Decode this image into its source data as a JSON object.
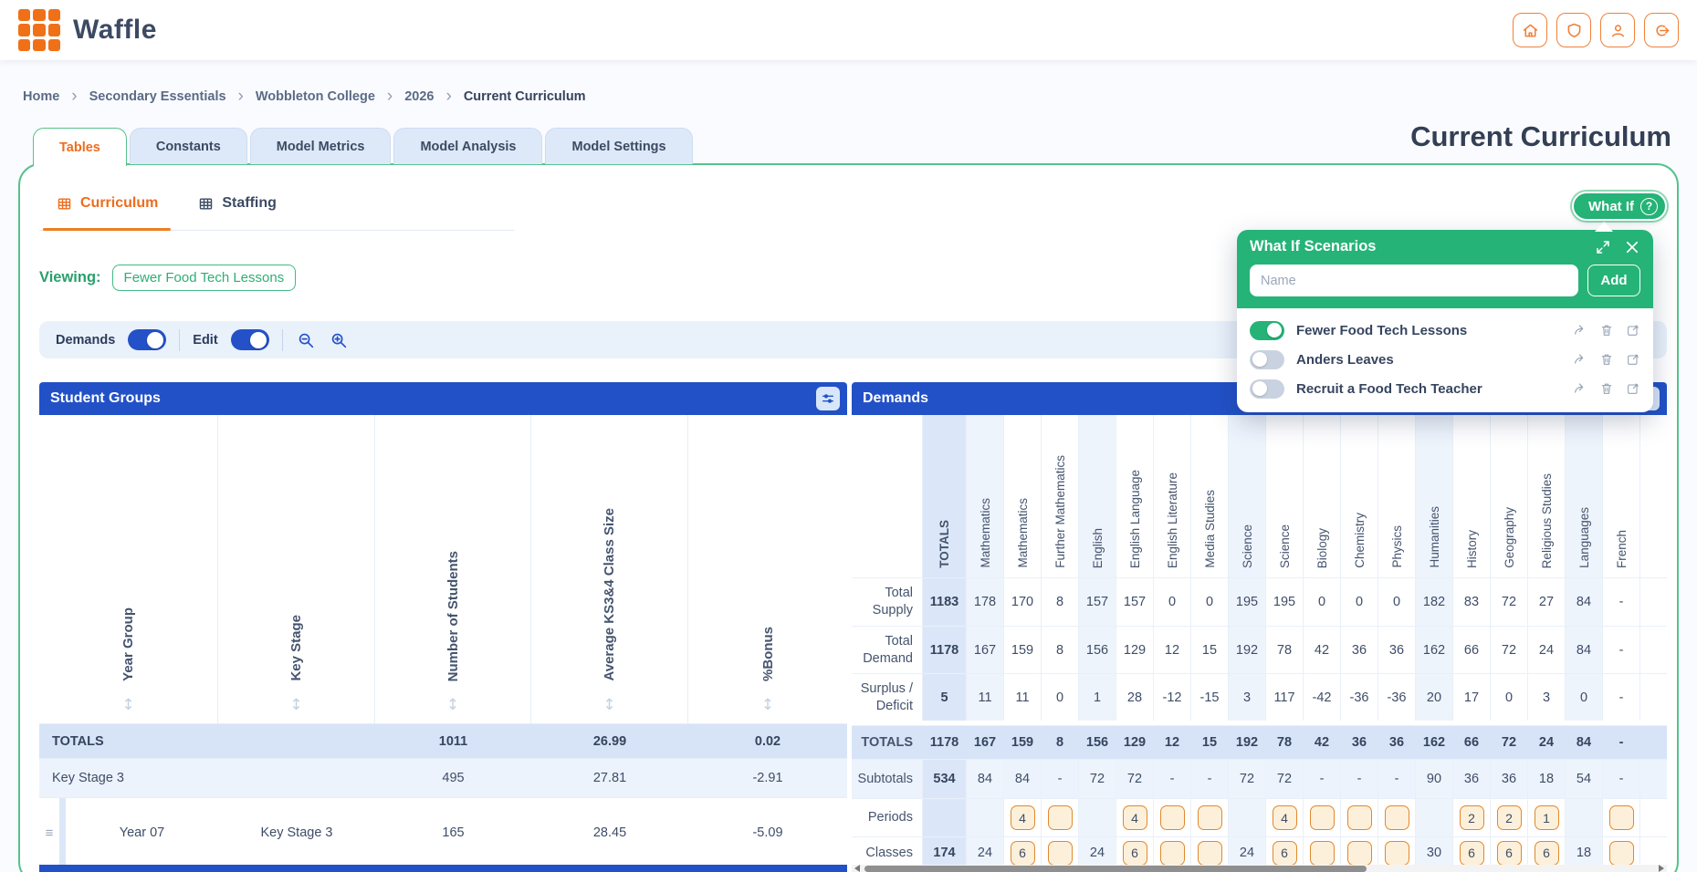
{
  "app": {
    "name": "Waffle"
  },
  "nav_icons": [
    {
      "name": "home-icon"
    },
    {
      "name": "shield-icon"
    },
    {
      "name": "user-icon"
    },
    {
      "name": "logout-icon"
    }
  ],
  "breadcrumb": {
    "items": [
      "Home",
      "Secondary Essentials",
      "Wobbleton College",
      "2026",
      "Current Curriculum"
    ]
  },
  "tabs": [
    {
      "label": "Tables",
      "active": true
    },
    {
      "label": "Constants",
      "active": false
    },
    {
      "label": "Model Metrics",
      "active": false
    },
    {
      "label": "Model Analysis",
      "active": false
    },
    {
      "label": "Model Settings",
      "active": false
    }
  ],
  "page_title": "Current Curriculum",
  "subtabs": [
    {
      "label": "Curriculum",
      "active": true
    },
    {
      "label": "Staffing",
      "active": false
    }
  ],
  "whatif": {
    "button_label": "What If",
    "panel": {
      "title": "What If Scenarios",
      "name_placeholder": "Name",
      "add_label": "Add",
      "scenarios": [
        {
          "name": "Fewer Food Tech Lessons",
          "active": true
        },
        {
          "name": "Anders Leaves",
          "active": false
        },
        {
          "name": "Recruit a Food Tech Teacher",
          "active": false
        }
      ]
    }
  },
  "viewing": {
    "label": "Viewing:",
    "value": "Fewer Food Tech Lessons"
  },
  "toolbar": {
    "demands_label": "Demands",
    "demands_on": true,
    "edit_label": "Edit",
    "edit_on": true
  },
  "student_groups": {
    "title": "Student Groups",
    "columns": [
      "Year Group",
      "Key Stage",
      "Number of Students",
      "Average KS3&4 Class Size",
      "%Bonus"
    ],
    "rows": [
      {
        "type": "totals",
        "cells": [
          "TOTALS",
          "",
          "1011",
          "26.99",
          "0.02"
        ]
      },
      {
        "type": "group",
        "cells": [
          "Key Stage 3",
          "",
          "495",
          "27.81",
          "-2.91"
        ]
      },
      {
        "type": "item",
        "cells": [
          "Year 07",
          "Key Stage 3",
          "165",
          "28.45",
          "-5.09"
        ]
      }
    ]
  },
  "demands": {
    "title": "Demands",
    "columns": [
      {
        "label": "TOTALS",
        "tint": "totals"
      },
      {
        "label": "Mathematics",
        "tint": "group"
      },
      {
        "label": "Mathematics"
      },
      {
        "label": "Further Mathematics"
      },
      {
        "label": "English",
        "tint": "group"
      },
      {
        "label": "English Language"
      },
      {
        "label": "English Literature"
      },
      {
        "label": "Media Studies"
      },
      {
        "label": "Science",
        "tint": "group"
      },
      {
        "label": "Science"
      },
      {
        "label": "Biology"
      },
      {
        "label": "Chemistry"
      },
      {
        "label": "Physics"
      },
      {
        "label": "Humanities",
        "tint": "group"
      },
      {
        "label": "History"
      },
      {
        "label": "Geography"
      },
      {
        "label": "Religious Studies"
      },
      {
        "label": "Languages",
        "tint": "group"
      },
      {
        "label": "French"
      }
    ],
    "rows": [
      {
        "label": "Total Supply",
        "type": "supply",
        "cells": [
          {
            "v": "1183"
          },
          {
            "v": "178"
          },
          {
            "v": "170"
          },
          {
            "v": "8"
          },
          {
            "v": "157"
          },
          {
            "v": "157"
          },
          {
            "v": "0"
          },
          {
            "v": "0"
          },
          {
            "v": "195"
          },
          {
            "v": "195"
          },
          {
            "v": "0"
          },
          {
            "v": "0"
          },
          {
            "v": "0"
          },
          {
            "v": "182"
          },
          {
            "v": "83"
          },
          {
            "v": "72"
          },
          {
            "v": "27"
          },
          {
            "v": "84"
          },
          {
            "v": "-"
          }
        ]
      },
      {
        "label": "Total Demand",
        "type": "demand",
        "cells": [
          {
            "v": "1178"
          },
          {
            "v": "167"
          },
          {
            "v": "159"
          },
          {
            "v": "8"
          },
          {
            "v": "156"
          },
          {
            "v": "129"
          },
          {
            "v": "12"
          },
          {
            "v": "15"
          },
          {
            "v": "192"
          },
          {
            "v": "78"
          },
          {
            "v": "42"
          },
          {
            "v": "36"
          },
          {
            "v": "36"
          },
          {
            "v": "162"
          },
          {
            "v": "66"
          },
          {
            "v": "72"
          },
          {
            "v": "24"
          },
          {
            "v": "84"
          },
          {
            "v": "-"
          }
        ]
      },
      {
        "label": "Surplus / Deficit",
        "type": "surplus",
        "cells": [
          {
            "v": "5"
          },
          {
            "v": "11"
          },
          {
            "v": "11"
          },
          {
            "v": "0"
          },
          {
            "v": "1"
          },
          {
            "v": "28"
          },
          {
            "v": "-12"
          },
          {
            "v": "-15"
          },
          {
            "v": "3"
          },
          {
            "v": "117"
          },
          {
            "v": "-42"
          },
          {
            "v": "-36"
          },
          {
            "v": "-36"
          },
          {
            "v": "20"
          },
          {
            "v": "17"
          },
          {
            "v": "0"
          },
          {
            "v": "3"
          },
          {
            "v": "0"
          },
          {
            "v": "-"
          }
        ]
      },
      {
        "label": "TOTALS",
        "type": "dtotals",
        "cells": [
          {
            "v": "1178"
          },
          {
            "v": "167"
          },
          {
            "v": "159"
          },
          {
            "v": "8"
          },
          {
            "v": "156"
          },
          {
            "v": "129"
          },
          {
            "v": "12"
          },
          {
            "v": "15"
          },
          {
            "v": "192"
          },
          {
            "v": "78"
          },
          {
            "v": "42"
          },
          {
            "v": "36"
          },
          {
            "v": "36"
          },
          {
            "v": "162"
          },
          {
            "v": "66"
          },
          {
            "v": "72"
          },
          {
            "v": "24"
          },
          {
            "v": "84"
          },
          {
            "v": "-"
          }
        ]
      },
      {
        "label": "Subtotals",
        "type": "subtotals",
        "cells": [
          {
            "v": "534"
          },
          {
            "v": "84"
          },
          {
            "v": "84"
          },
          {
            "v": "-"
          },
          {
            "v": "72"
          },
          {
            "v": "72"
          },
          {
            "v": "-"
          },
          {
            "v": "-"
          },
          {
            "v": "72"
          },
          {
            "v": "72"
          },
          {
            "v": "-"
          },
          {
            "v": "-"
          },
          {
            "v": "-"
          },
          {
            "v": "90"
          },
          {
            "v": "36"
          },
          {
            "v": "36"
          },
          {
            "v": "18"
          },
          {
            "v": "54"
          },
          {
            "v": "-"
          }
        ]
      },
      {
        "label": "Periods",
        "type": "periods",
        "cells": [
          {
            "v": ""
          },
          {
            "v": ""
          },
          {
            "v": "4",
            "input": true
          },
          {
            "v": "",
            "input": true
          },
          {
            "v": ""
          },
          {
            "v": "4",
            "input": true
          },
          {
            "v": "",
            "input": true
          },
          {
            "v": "",
            "input": true
          },
          {
            "v": ""
          },
          {
            "v": "4",
            "input": true
          },
          {
            "v": "",
            "input": true
          },
          {
            "v": "",
            "input": true
          },
          {
            "v": "",
            "input": true
          },
          {
            "v": ""
          },
          {
            "v": "2",
            "input": true
          },
          {
            "v": "2",
            "input": true
          },
          {
            "v": "1",
            "input": true
          },
          {
            "v": ""
          },
          {
            "v": "",
            "input": true
          }
        ]
      },
      {
        "label": "Classes",
        "type": "classes",
        "cells": [
          {
            "v": "174"
          },
          {
            "v": "24"
          },
          {
            "v": "6",
            "input": true
          },
          {
            "v": "",
            "input": true
          },
          {
            "v": "24"
          },
          {
            "v": "6",
            "input": true
          },
          {
            "v": "",
            "input": true
          },
          {
            "v": "",
            "input": true
          },
          {
            "v": "24"
          },
          {
            "v": "6",
            "input": true
          },
          {
            "v": "",
            "input": true
          },
          {
            "v": "",
            "input": true
          },
          {
            "v": "",
            "input": true
          },
          {
            "v": "30"
          },
          {
            "v": "6",
            "input": true
          },
          {
            "v": "6",
            "input": true
          },
          {
            "v": "6",
            "input": true
          },
          {
            "v": "18"
          },
          {
            "v": "",
            "input": true
          }
        ]
      }
    ]
  },
  "colors": {
    "brand_orange": "#f07018",
    "header_blue": "#2251c7",
    "green": "#25b377",
    "card_border_green": "#57c28e",
    "totals_row": "#d7e4f7",
    "group_row": "#ecf3fc",
    "input_cell_border": "#e0892e",
    "input_cell_bg": "#fdf0da"
  }
}
